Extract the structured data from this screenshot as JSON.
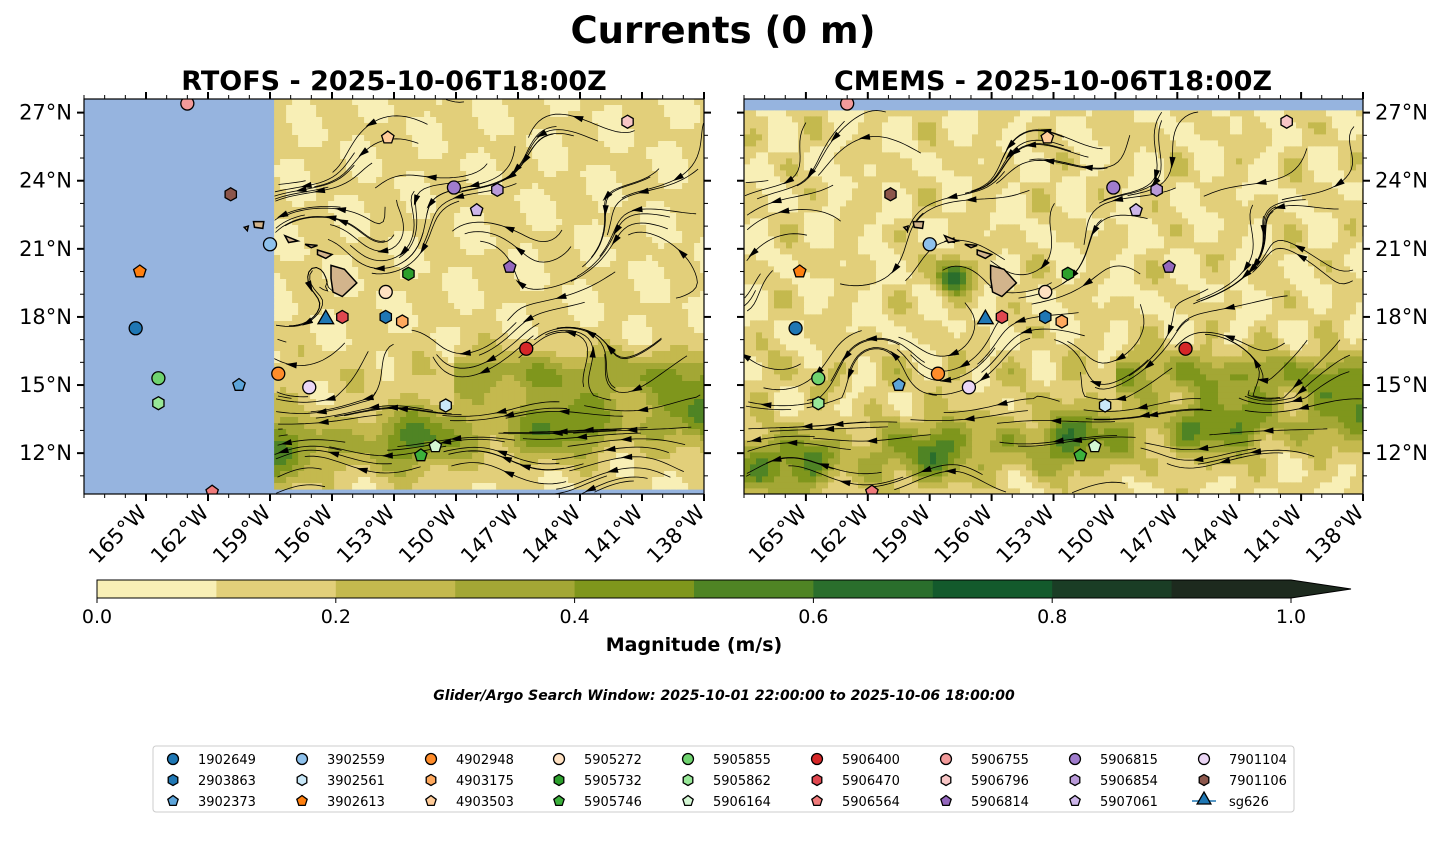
{
  "title": "Currents (0 m)",
  "search_window": "Glider/Argo Search Window: 2025-10-01 22:00:00 to 2025-10-06 18:00:00",
  "colors": {
    "ocean": "#96b4df",
    "land": "#d2b48c",
    "colormap": [
      "#f8efb6",
      "#e2cf7a",
      "#c4b94e",
      "#a3a735",
      "#7f961c",
      "#4f8424",
      "#2a6e2c",
      "#135a2c",
      "#1a3d25",
      "#1d2a1e"
    ]
  },
  "chart_data": {
    "type": "map",
    "xlim": [
      -168,
      -138
    ],
    "ylim": [
      10.2,
      27.6
    ],
    "lon_ticks": [
      -165,
      -162,
      -159,
      -156,
      -153,
      -150,
      -147,
      -144,
      -141,
      -138
    ],
    "lon_tick_labels": [
      "165°W",
      "162°W",
      "159°W",
      "156°W",
      "153°W",
      "150°W",
      "147°W",
      "144°W",
      "141°W",
      "138°W"
    ],
    "lat_ticks": [
      12,
      15,
      18,
      21,
      24,
      27
    ],
    "lat_tick_labels": [
      "12°N",
      "15°N",
      "18°N",
      "21°N",
      "24°N",
      "27°N"
    ],
    "panels": [
      {
        "title": "RTOFS - 2025-10-06T18:00Z",
        "model_west_lon": -158.8,
        "model_top_lat": 27.6
      },
      {
        "title": "CMEMS - 2025-10-06T18:00Z",
        "model_west_lon": -168,
        "model_top_lat": 27.1
      }
    ],
    "colorbar": {
      "label": "Magnitude (m/s)",
      "levels": [
        0.0,
        0.1,
        0.2,
        0.3,
        0.4,
        0.5,
        0.6,
        0.7,
        0.8,
        0.9,
        1.0
      ],
      "ticks": [
        0.0,
        0.2,
        0.4,
        0.6,
        0.8,
        1.0
      ],
      "tick_labels": [
        "0.0",
        "0.2",
        "0.4",
        "0.6",
        "0.8",
        "1.0"
      ],
      "extend": "max"
    },
    "series": [
      {
        "name": "1902649",
        "color": "#1f77b4",
        "marker": "circle",
        "lon": -165.5,
        "lat": 17.5
      },
      {
        "name": "2903863",
        "color": "#1f77b4",
        "marker": "hexagon",
        "lon": -153.4,
        "lat": 18.0
      },
      {
        "name": "3902373",
        "color": "#5da5da",
        "marker": "pentagon",
        "lon": -160.5,
        "lat": 15.0
      },
      {
        "name": "3902559",
        "color": "#8ec1ec",
        "marker": "circle",
        "lon": -159.0,
        "lat": 21.2
      },
      {
        "name": "3902561",
        "color": "#c9e8f8",
        "marker": "hexagon",
        "lon": -150.5,
        "lat": 14.1
      },
      {
        "name": "3902613",
        "color": "#ff7f0e",
        "marker": "pentagon",
        "lon": -165.3,
        "lat": 20.0
      },
      {
        "name": "4902948",
        "color": "#ff8c2a",
        "marker": "circle",
        "lon": -158.6,
        "lat": 15.5
      },
      {
        "name": "4903175",
        "color": "#ffa95e",
        "marker": "hexagon",
        "lon": -152.6,
        "lat": 17.8
      },
      {
        "name": "4903503",
        "color": "#ffcc99",
        "marker": "pentagon",
        "lon": -153.3,
        "lat": 25.9
      },
      {
        "name": "5905272",
        "color": "#ffe1c2",
        "marker": "circle",
        "lon": -153.4,
        "lat": 19.1
      },
      {
        "name": "5905732",
        "color": "#2ca02c",
        "marker": "hexagon",
        "lon": -152.3,
        "lat": 19.9
      },
      {
        "name": "5905746",
        "color": "#3cb03c",
        "marker": "pentagon",
        "lon": -151.7,
        "lat": 11.9
      },
      {
        "name": "5905855",
        "color": "#6fd36f",
        "marker": "circle",
        "lon": -164.4,
        "lat": 15.3
      },
      {
        "name": "5905862",
        "color": "#98e898",
        "marker": "hexagon",
        "lon": -164.4,
        "lat": 14.2
      },
      {
        "name": "5906164",
        "color": "#d4f7d4",
        "marker": "pentagon",
        "lon": -151.0,
        "lat": 12.3
      },
      {
        "name": "5906400",
        "color": "#d62728",
        "marker": "circle",
        "lon": -146.6,
        "lat": 16.6
      },
      {
        "name": "5906470",
        "color": "#e0474f",
        "marker": "hexagon",
        "lon": -155.5,
        "lat": 18.0
      },
      {
        "name": "5906564",
        "color": "#f07b7b",
        "marker": "pentagon",
        "lon": -161.8,
        "lat": 10.3
      },
      {
        "name": "5906755",
        "color": "#f29a9a",
        "marker": "circle",
        "lon": -163.0,
        "lat": 27.4
      },
      {
        "name": "5906796",
        "color": "#f8c6c6",
        "marker": "hexagon",
        "lon": -141.7,
        "lat": 26.6
      },
      {
        "name": "5906814",
        "color": "#9467bd",
        "marker": "pentagon",
        "lon": -147.4,
        "lat": 20.2
      },
      {
        "name": "5906815",
        "color": "#a07ccd",
        "marker": "circle",
        "lon": -150.1,
        "lat": 23.7
      },
      {
        "name": "5906854",
        "color": "#b99ad9",
        "marker": "hexagon",
        "lon": -148.0,
        "lat": 23.6
      },
      {
        "name": "5907061",
        "color": "#cdb6ea",
        "marker": "pentagon",
        "lon": -149.0,
        "lat": 22.7
      },
      {
        "name": "7901104",
        "color": "#ebd6f5",
        "marker": "circle",
        "lon": -157.1,
        "lat": 14.9
      },
      {
        "name": "7901106",
        "color": "#8c564b",
        "marker": "hexagon",
        "lon": -160.9,
        "lat": 23.4
      },
      {
        "name": "sg626",
        "color": "#1f77b4",
        "marker": "triangle",
        "lon": -156.3,
        "lat": 17.9
      }
    ]
  }
}
